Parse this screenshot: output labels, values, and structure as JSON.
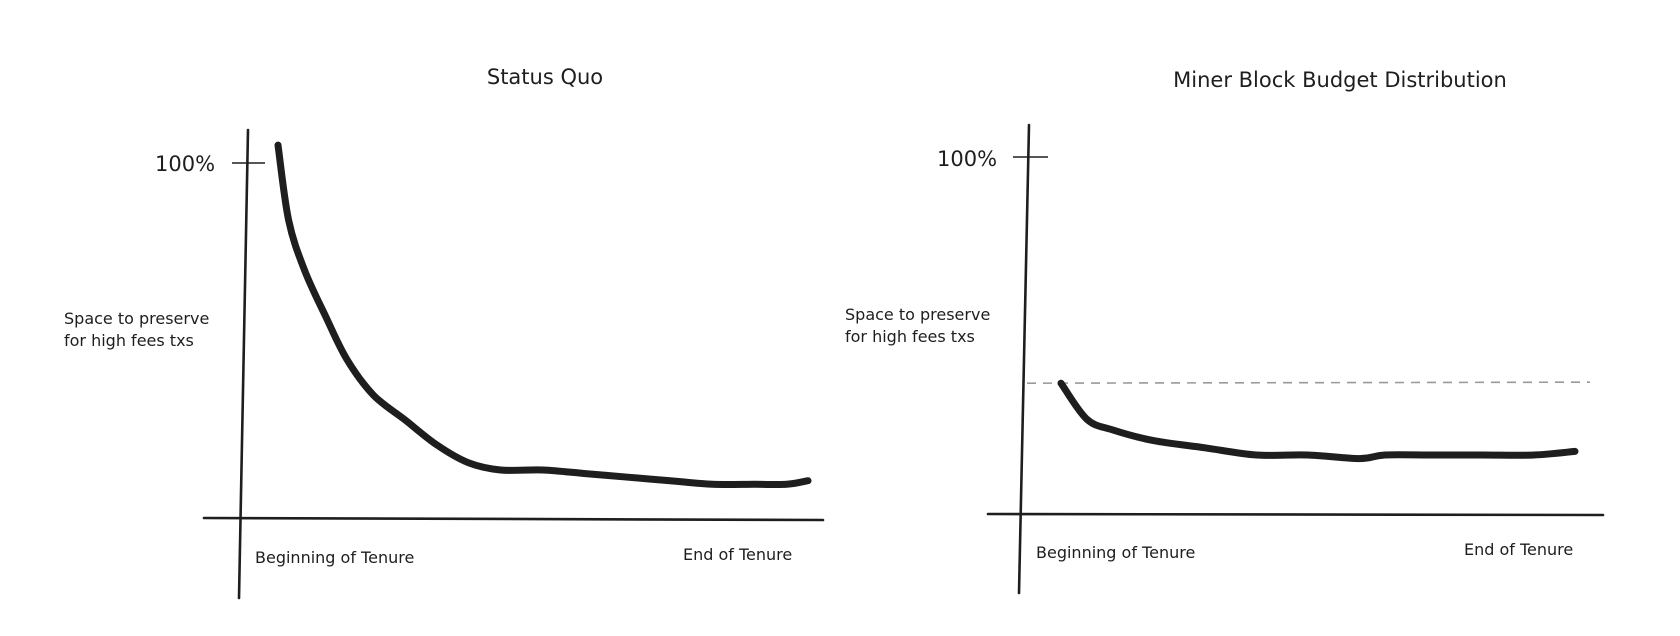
{
  "chart_data": [
    {
      "type": "line",
      "title": "Status Quo",
      "ylabel": "Space to preserve for high fees txs",
      "ylabel_lines": [
        "Space to preserve",
        "for high fees txs"
      ],
      "ytick_label": "100%",
      "ytick_value": 100,
      "x_start_label": "Beginning of Tenure",
      "x_end_label": "End of Tenure",
      "xlim": [
        0,
        1
      ],
      "ylim": [
        0,
        108
      ],
      "grid": false,
      "series": [
        {
          "x": [
            0.0,
            0.02,
            0.05,
            0.09,
            0.13,
            0.18,
            0.24,
            0.3,
            0.36,
            0.42,
            0.5,
            0.58,
            0.66,
            0.74,
            0.82,
            0.9,
            0.96,
            1.0
          ],
          "values": [
            105,
            84,
            70,
            57,
            45,
            35,
            28,
            21,
            16,
            14,
            14,
            13,
            12,
            11,
            10,
            10,
            10,
            11
          ]
        }
      ]
    },
    {
      "type": "line",
      "title": "Miner Block Budget Distribution",
      "ylabel": "Space to preserve for high fees txs",
      "ylabel_lines": [
        "Space to preserve",
        "for high fees txs"
      ],
      "ytick_label": "100%",
      "ytick_value": 100,
      "x_start_label": "Beginning of Tenure",
      "x_end_label": "End of Tenure",
      "xlim": [
        0,
        1
      ],
      "ylim": [
        0,
        108
      ],
      "grid": false,
      "reference_line": 37,
      "series": [
        {
          "x": [
            0.0,
            0.05,
            0.1,
            0.18,
            0.28,
            0.38,
            0.48,
            0.58,
            0.63,
            0.72,
            0.82,
            0.92,
            1.0
          ],
          "values": [
            37,
            27,
            24,
            21,
            19,
            17,
            17,
            16,
            17,
            17,
            17,
            17,
            18
          ]
        }
      ]
    }
  ]
}
